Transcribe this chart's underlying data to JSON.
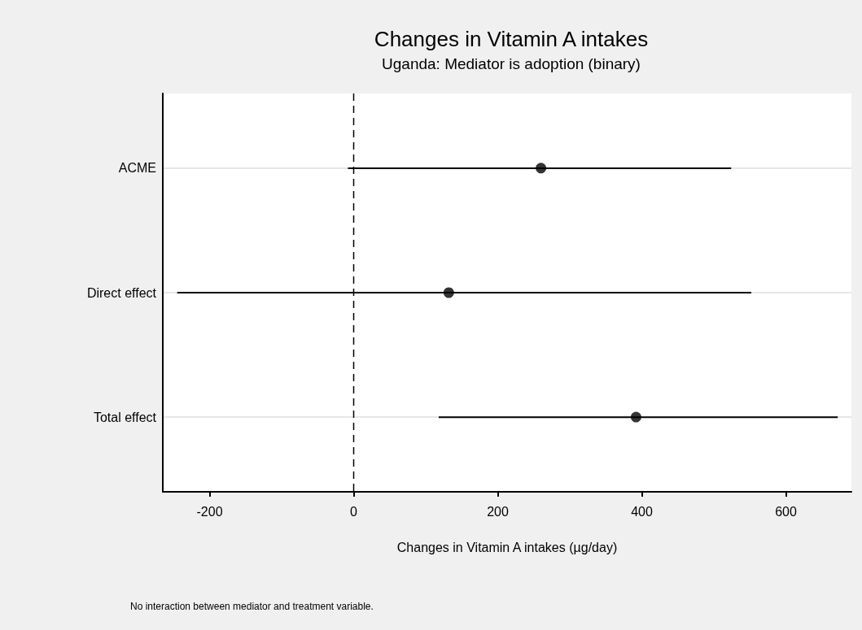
{
  "chart_data": {
    "type": "scatter",
    "title": "Changes in Vitamin A intakes",
    "subtitle": "Uganda: Mediator is adoption (binary)",
    "xlabel": "Changes in Vitamin A intakes (µg/day)",
    "orientation": "horizontal",
    "categories": [
      "ACME",
      "Direct effect",
      "Total effect"
    ],
    "values": [
      260,
      132,
      392
    ],
    "errors": [
      [
        -8,
        524
      ],
      [
        -245,
        552
      ],
      [
        118,
        672
      ]
    ],
    "color": "#000000",
    "marker": "circle",
    "xlim": [
      -265,
      691
    ],
    "xticks": [
      -200,
      0,
      200,
      400,
      600
    ],
    "grid": "y",
    "ref_lines": [
      {
        "axis": "x",
        "value": 0,
        "line_style": "dashed",
        "color": "#000000"
      }
    ],
    "annotations": [
      "No interaction between mediator and treatment variable."
    ]
  }
}
